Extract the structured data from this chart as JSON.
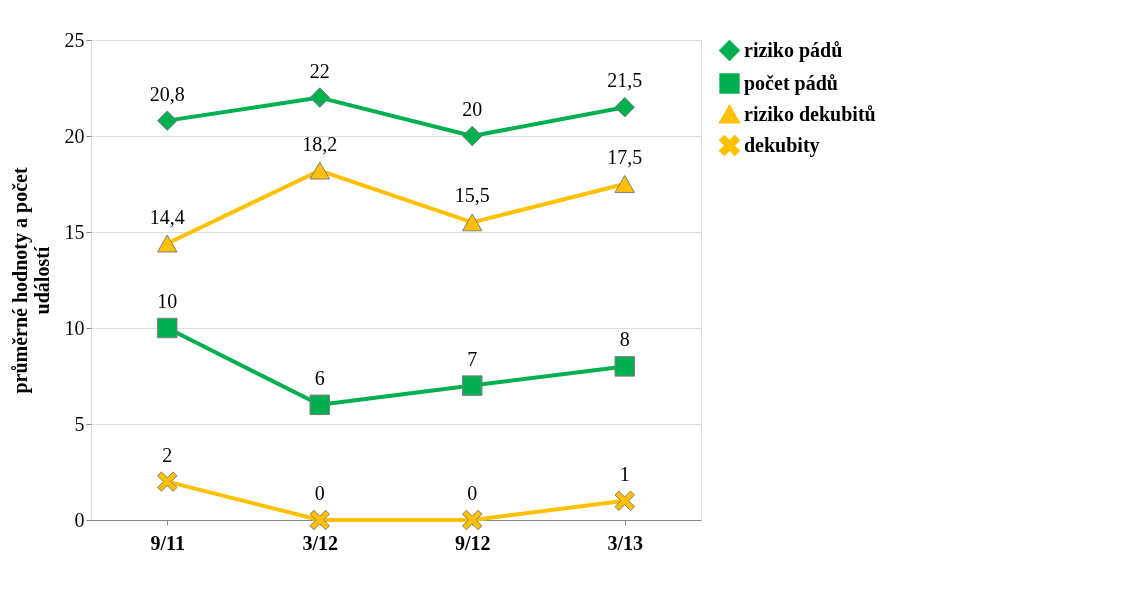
{
  "chart_data": {
    "type": "line",
    "ylabel": "průměrné hodnoty a počet událostí",
    "categories": [
      "9/11",
      "3/12",
      "9/12",
      "3/13"
    ],
    "ylim": [
      0,
      25
    ],
    "yticks": [
      0,
      5,
      10,
      15,
      20,
      25
    ],
    "grid": "y",
    "legend": "right",
    "line_style": "solid",
    "series": [
      {
        "name": "riziko pádů",
        "color": "#00b050",
        "marker": "diamond",
        "values": [
          20.8,
          22,
          20,
          21.5
        ],
        "value_labels": [
          "20,8",
          "22",
          "20",
          "21,5"
        ]
      },
      {
        "name": "počet pádů",
        "color": "#00b050",
        "marker": "square",
        "values": [
          10,
          6,
          7,
          8
        ],
        "value_labels": [
          "10",
          "6",
          "7",
          "8"
        ]
      },
      {
        "name": "riziko dekubitů",
        "color": "#ffc000",
        "marker": "triangle",
        "values": [
          14.4,
          18.2,
          15.5,
          17.5
        ],
        "value_labels": [
          "14,4",
          "18,2",
          "15,5",
          "17,5"
        ]
      },
      {
        "name": "dekubity",
        "color": "#ffc000",
        "marker": "cross",
        "values": [
          2,
          0,
          0,
          1
        ],
        "value_labels": [
          "2",
          "0",
          "0",
          "1"
        ]
      }
    ]
  }
}
